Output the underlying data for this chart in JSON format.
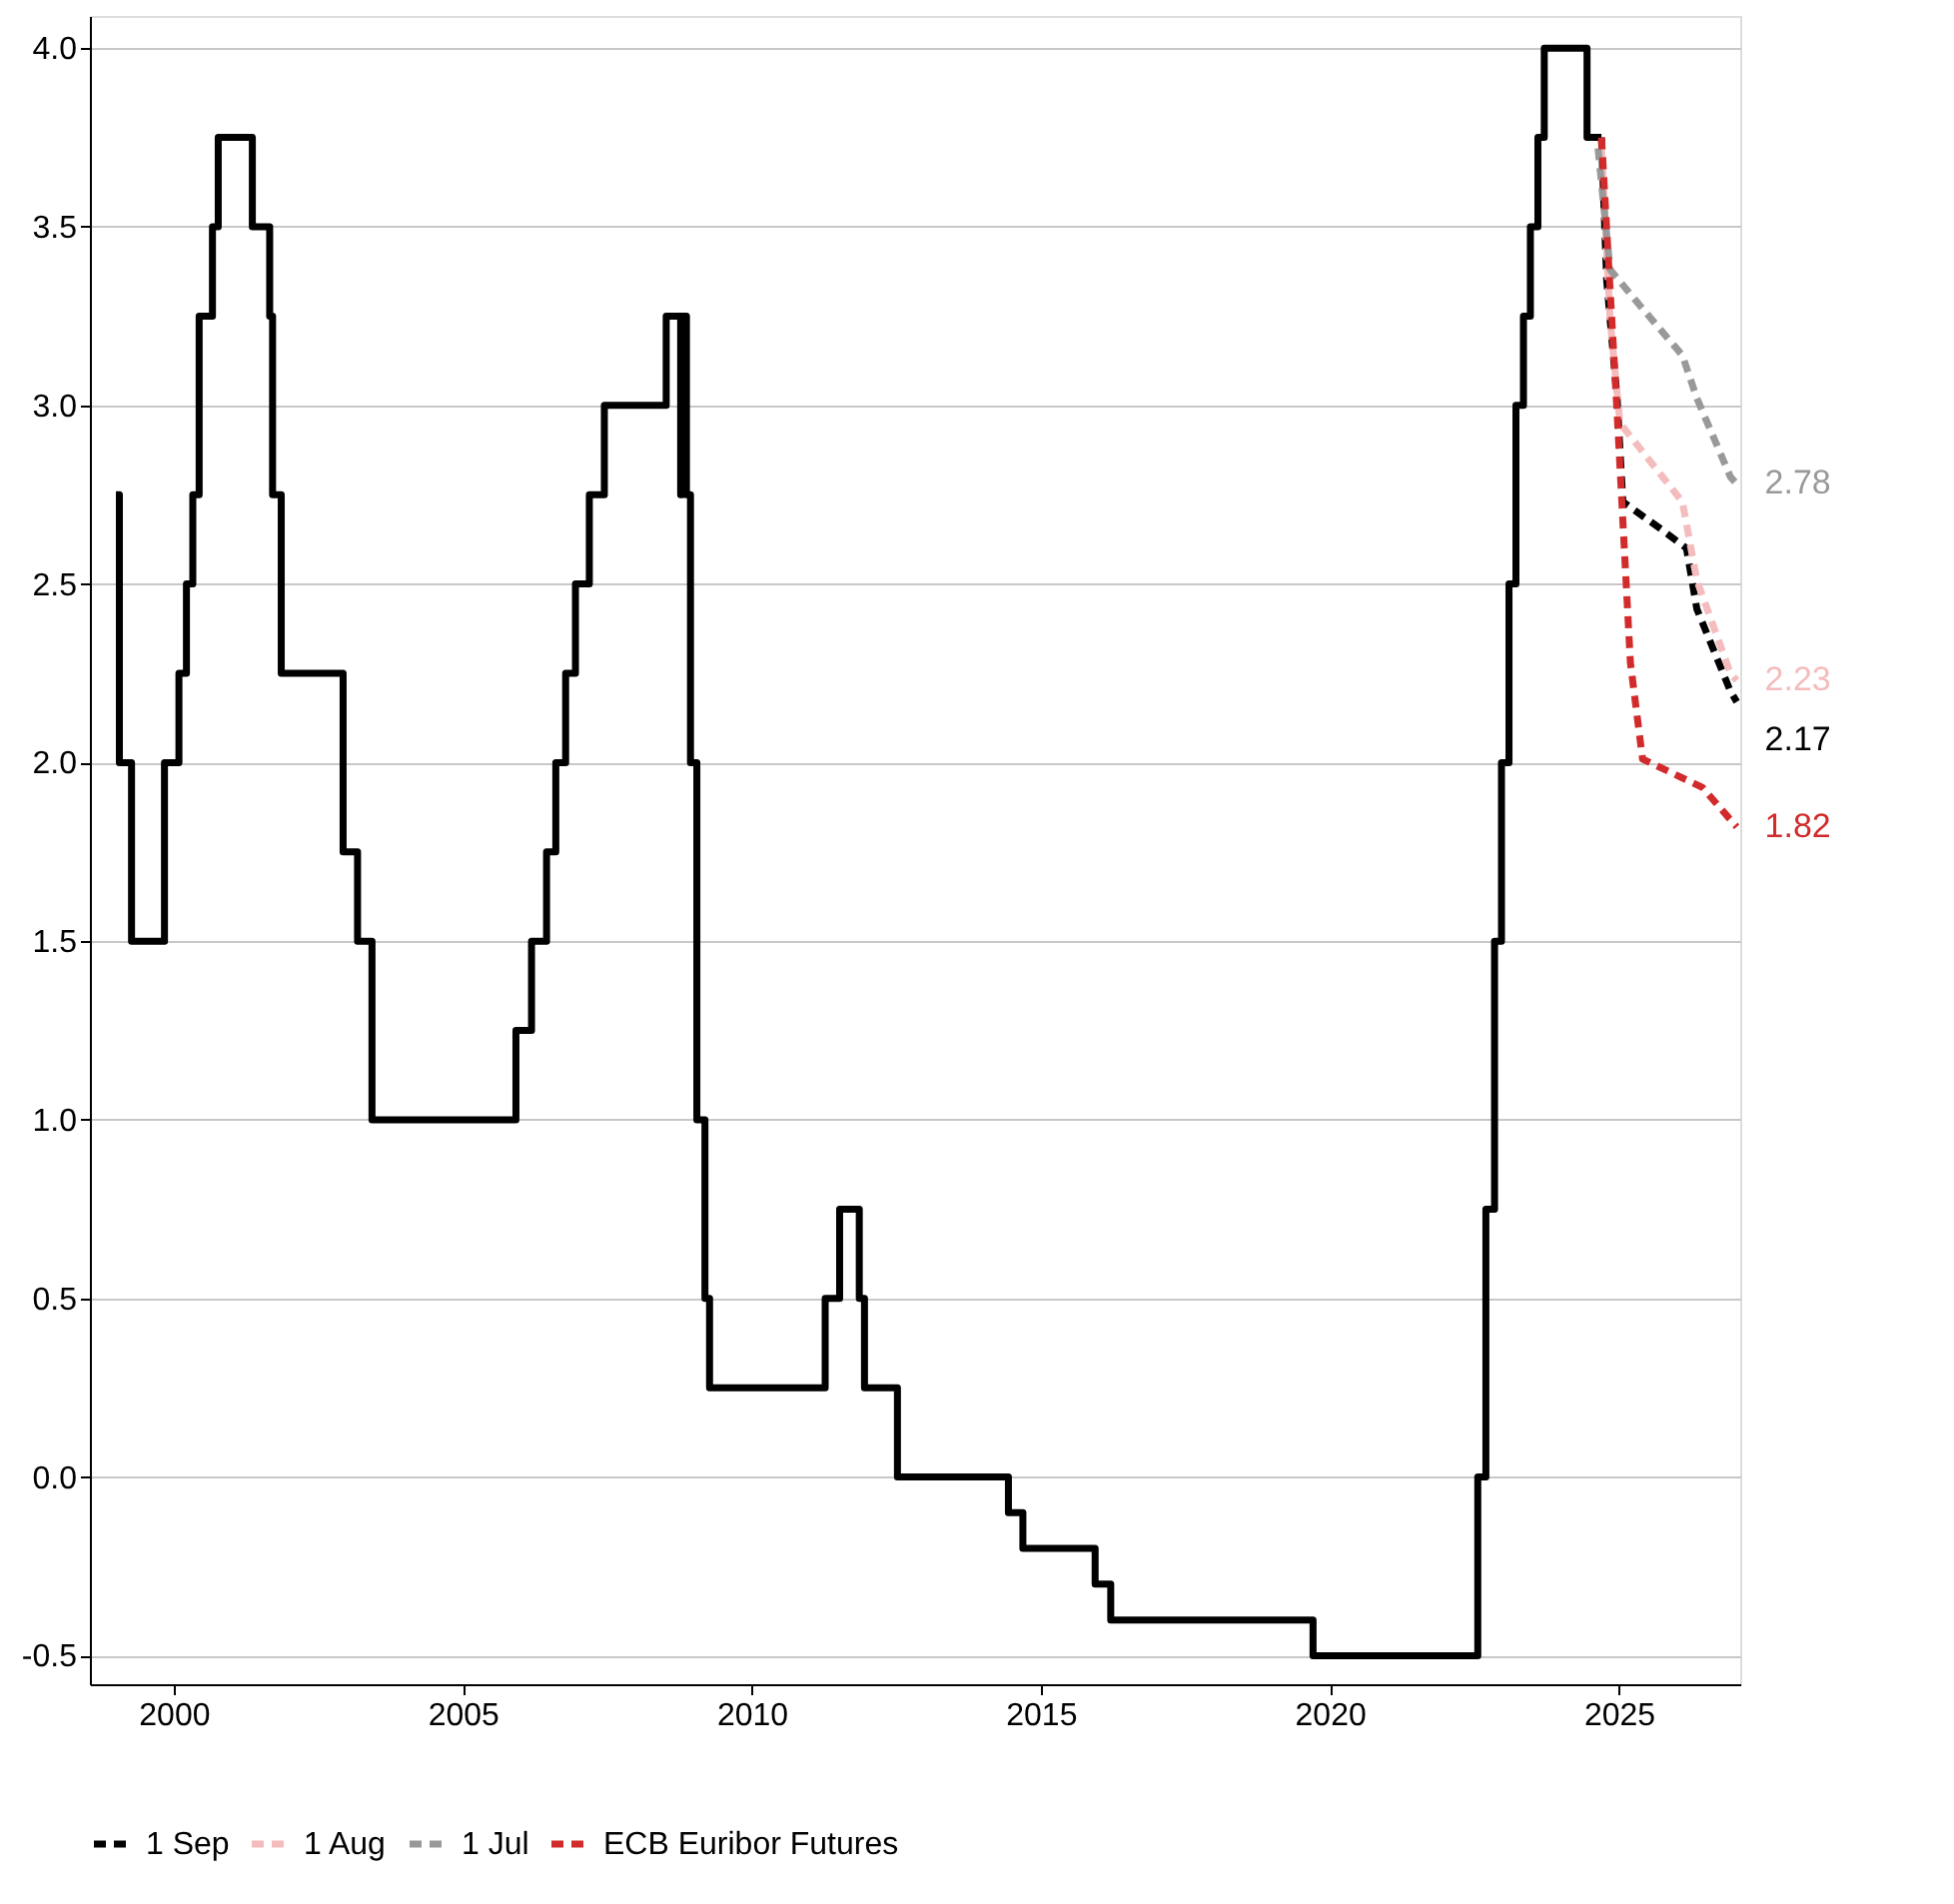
{
  "chart_data": {
    "type": "line",
    "xlim": [
      1998.55,
      2027.1
    ],
    "xticks": [
      2000,
      2005,
      2010,
      2015,
      2020,
      2025
    ],
    "ylim": [
      -0.58,
      4.09
    ],
    "yticks": [
      -0.5,
      {
        "value": 0,
        "label": "0.0"
      },
      0.5,
      {
        "value": 1,
        "label": "1.0"
      },
      1.5,
      {
        "value": 2,
        "label": "2.0"
      },
      2.5,
      {
        "value": 3,
        "label": "3.0"
      },
      3.5,
      {
        "value": 4,
        "label": "4.0"
      }
    ],
    "grid": "y",
    "legend": "bottom left",
    "series": [
      {
        "type": "step",
        "color": "#000000",
        "line_style": "solid",
        "x": [
          1999.0,
          1999.06,
          1999.27,
          1999.84,
          2000.09,
          2000.22,
          2000.33,
          2000.44,
          2000.67,
          2000.77,
          2001.36,
          2001.66,
          2001.71,
          2001.86,
          2002.93,
          2003.18,
          2003.43,
          2005.92,
          2006.19,
          2006.45,
          2006.61,
          2006.78,
          2006.95,
          2007.19,
          2007.45,
          2008.52,
          2008.77,
          2008.79,
          2008.87,
          2008.94,
          2009.05,
          2009.19,
          2009.27,
          2011.27,
          2011.52,
          2011.86,
          2011.95,
          2012.52,
          2014.44,
          2014.69,
          2015.94,
          2016.21,
          2019.71,
          2022.56,
          2022.7,
          2022.85,
          2022.97,
          2023.1,
          2023.22,
          2023.35,
          2023.47,
          2023.6,
          2023.71,
          2024.45,
          2024.7
        ],
        "values": [
          2.75,
          2.0,
          1.5,
          2.0,
          2.25,
          2.5,
          2.75,
          3.25,
          3.5,
          3.75,
          3.5,
          3.25,
          2.75,
          2.25,
          1.75,
          1.5,
          1.0,
          1.25,
          1.5,
          1.75,
          2.0,
          2.25,
          2.5,
          2.75,
          3.0,
          3.25,
          2.75,
          3.25,
          2.75,
          2.0,
          1.0,
          0.5,
          0.25,
          0.5,
          0.75,
          0.5,
          0.25,
          0.0,
          -0.1,
          -0.2,
          -0.3,
          -0.4,
          -0.5,
          0.0,
          0.75,
          1.5,
          2.0,
          2.5,
          3.0,
          3.25,
          3.5,
          3.75,
          4.0,
          3.75,
          3.75
        ]
      },
      {
        "name": "1 Sep",
        "color": "#000000",
        "line_style": "dashed",
        "x": [
          2024.7,
          2024.79,
          2024.97,
          2025.07,
          2025.76,
          2026.17,
          2026.35,
          2026.93,
          2027.04
        ],
        "values": [
          3.75,
          3.35,
          3.02,
          2.73,
          2.65,
          2.6,
          2.43,
          2.2,
          2.17
        ],
        "value_labels": [
          null,
          null,
          null,
          null,
          null,
          null,
          null,
          null,
          "2.17"
        ]
      },
      {
        "name": "1 Aug",
        "color": "#f4bcbc",
        "line_style": "dashed",
        "x": [
          2024.7,
          2024.85,
          2025.02,
          2026.1,
          2026.35,
          2026.93,
          2027.04
        ],
        "values": [
          3.72,
          3.24,
          2.95,
          2.73,
          2.51,
          2.25,
          2.23
        ],
        "value_labels": [
          null,
          null,
          null,
          null,
          null,
          null,
          "2.23"
        ]
      },
      {
        "name": "1 Jul",
        "color": "#999999",
        "line_style": "dashed",
        "x": [
          2024.64,
          2024.85,
          2025.31,
          2026.1,
          2026.35,
          2026.93,
          2027.04
        ],
        "values": [
          3.72,
          3.38,
          3.29,
          3.14,
          3.02,
          2.8,
          2.78
        ],
        "value_labels": [
          null,
          null,
          null,
          null,
          null,
          null,
          "2.78"
        ]
      },
      {
        "name": "ECB Euribor Futures",
        "color": "#d22b2b",
        "line_style": "dashed",
        "x": [
          2024.7,
          2024.97,
          2025.2,
          2025.41,
          2026.45,
          2026.93,
          2027.04
        ],
        "values": [
          3.75,
          2.98,
          2.28,
          2.01,
          1.93,
          1.84,
          1.82
        ],
        "value_labels": [
          null,
          null,
          null,
          null,
          null,
          null,
          "1.82"
        ]
      }
    ]
  }
}
